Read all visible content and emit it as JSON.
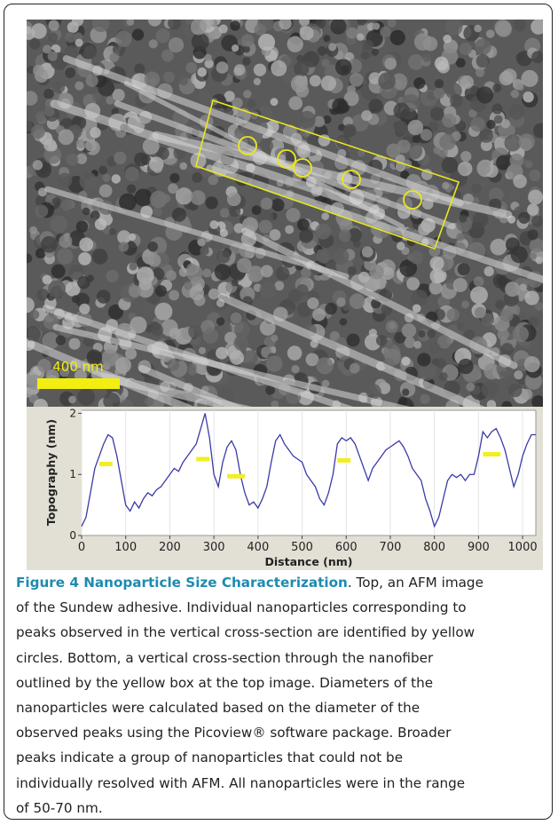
{
  "figure": {
    "scale_label": "400 nm"
  },
  "chart_data": {
    "type": "line",
    "xlabel": "Distance (nm)",
    "ylabel": "Topography (nm)",
    "x": [
      0,
      10,
      20,
      30,
      40,
      50,
      60,
      70,
      80,
      90,
      100,
      110,
      120,
      130,
      140,
      150,
      160,
      170,
      180,
      190,
      200,
      210,
      220,
      230,
      240,
      250,
      260,
      270,
      280,
      290,
      300,
      310,
      320,
      330,
      340,
      350,
      360,
      370,
      380,
      390,
      400,
      410,
      420,
      430,
      440,
      450,
      460,
      470,
      480,
      490,
      500,
      510,
      520,
      530,
      540,
      550,
      560,
      570,
      580,
      590,
      600,
      610,
      620,
      630,
      640,
      650,
      660,
      670,
      680,
      690,
      700,
      710,
      720,
      730,
      740,
      750,
      760,
      770,
      780,
      790,
      800,
      810,
      820,
      830,
      840,
      850,
      860,
      870,
      880,
      890,
      900,
      910,
      920,
      930,
      940,
      950,
      960,
      970,
      980,
      990,
      1000,
      1010,
      1020,
      1030
    ],
    "series": [
      {
        "color": "#3a3aa8",
        "values": [
          0.15,
          0.3,
          0.7,
          1.1,
          1.3,
          1.5,
          1.65,
          1.6,
          1.3,
          0.9,
          0.5,
          0.4,
          0.55,
          0.45,
          0.6,
          0.7,
          0.65,
          0.75,
          0.8,
          0.9,
          1.0,
          1.1,
          1.05,
          1.2,
          1.3,
          1.4,
          1.5,
          1.75,
          2.0,
          1.6,
          1.0,
          0.8,
          1.2,
          1.45,
          1.55,
          1.4,
          1.0,
          0.7,
          0.5,
          0.55,
          0.45,
          0.6,
          0.8,
          1.2,
          1.55,
          1.65,
          1.5,
          1.4,
          1.3,
          1.25,
          1.2,
          1.0,
          0.9,
          0.8,
          0.6,
          0.5,
          0.7,
          1.0,
          1.5,
          1.6,
          1.55,
          1.6,
          1.5,
          1.3,
          1.1,
          0.9,
          1.1,
          1.2,
          1.3,
          1.4,
          1.45,
          1.5,
          1.55,
          1.45,
          1.3,
          1.1,
          1.0,
          0.9,
          0.6,
          0.4,
          0.15,
          0.3,
          0.6,
          0.9,
          1.0,
          0.95,
          1.0,
          0.9,
          1.0,
          1.0,
          1.3,
          1.7,
          1.6,
          1.7,
          1.75,
          1.6,
          1.4,
          1.1,
          0.8,
          1.0,
          1.3,
          1.5,
          1.65,
          1.65
        ]
      }
    ],
    "highlights": {
      "color": "#f2ee22",
      "x0": [
        40,
        260,
        330,
        580,
        910
      ],
      "x1": [
        70,
        290,
        370,
        610,
        950
      ],
      "y": [
        1.17,
        1.25,
        0.97,
        1.23,
        1.33
      ]
    },
    "xlim": [
      0,
      1030
    ],
    "ylim": [
      0,
      2.05
    ],
    "xticks": [
      0,
      100,
      200,
      300,
      400,
      500,
      600,
      700,
      800,
      900,
      1000
    ],
    "yticks": [
      0,
      1,
      2
    ],
    "grid": true
  },
  "caption": {
    "bold": "Figure 4 Nanoparticle Size Characterization",
    "lines": [
      ". Top, an AFM image",
      "of the Sundew adhesive. Individual nanoparticles corresponding to",
      "peaks observed in the vertical cross-section are identified by yellow",
      "circles. Bottom, a vertical cross-section through the nanofiber",
      "outlined by the yellow box at the top image. Diameters of the",
      "nanoparticles were calculated based on the diameter of the",
      "observed peaks using the Picoview® software package. Broader",
      "peaks indicate a group of nanoparticles that could not be",
      "individually resolved with AFM. All nanoparticles were in the range",
      "of 50-70 nm."
    ]
  }
}
